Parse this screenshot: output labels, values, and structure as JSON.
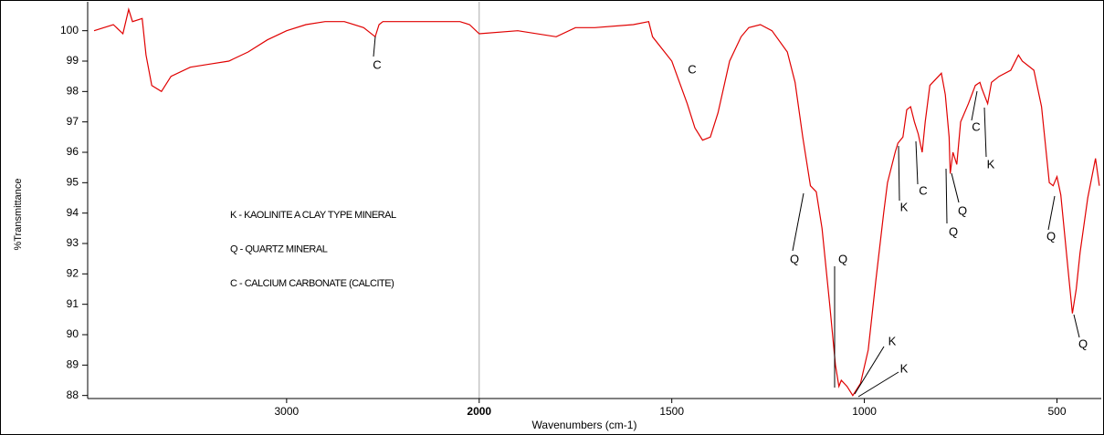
{
  "chart_data": {
    "type": "line",
    "xlabel": "Wavenumbers (cm-1)",
    "ylabel": "%Transmittance",
    "x": [
      4000,
      3900,
      3850,
      3820,
      3800,
      3750,
      3730,
      3700,
      3650,
      3600,
      3500,
      3400,
      3300,
      3200,
      3100,
      3000,
      2900,
      2800,
      2700,
      2600,
      2540,
      2520,
      2500,
      2300,
      2100,
      2050,
      2000,
      1900,
      1800,
      1750,
      1700,
      1600,
      1560,
      1550,
      1500,
      1480,
      1460,
      1440,
      1420,
      1400,
      1380,
      1350,
      1320,
      1300,
      1270,
      1240,
      1200,
      1180,
      1160,
      1140,
      1125,
      1110,
      1090,
      1075,
      1066,
      1060,
      1045,
      1030,
      1010,
      990,
      970,
      950,
      940,
      920,
      913,
      900,
      890,
      880,
      870,
      860,
      850,
      842,
      830,
      800,
      790,
      780,
      777,
      770,
      760,
      750,
      730,
      712,
      700,
      695,
      680,
      670,
      650,
      620,
      600,
      590,
      560,
      540,
      520,
      510,
      500,
      490,
      470,
      460,
      450,
      440,
      420,
      400,
      390
    ],
    "values": [
      100.0,
      100.2,
      99.9,
      100.7,
      100.3,
      100.4,
      99.2,
      98.2,
      98.0,
      98.5,
      98.8,
      98.9,
      99.0,
      99.3,
      99.7,
      100.0,
      100.2,
      100.3,
      100.3,
      100.1,
      99.8,
      100.2,
      100.3,
      100.3,
      100.3,
      100.2,
      99.9,
      100.0,
      99.8,
      100.1,
      100.1,
      100.2,
      100.3,
      99.8,
      99.0,
      98.3,
      97.6,
      96.8,
      96.4,
      96.5,
      97.3,
      99.0,
      99.8,
      100.1,
      100.2,
      100.0,
      99.3,
      98.3,
      96.5,
      94.9,
      94.7,
      93.5,
      91.0,
      89.0,
      88.3,
      88.5,
      88.3,
      88.0,
      88.4,
      89.5,
      91.8,
      94.0,
      95.0,
      96.0,
      96.3,
      96.5,
      97.4,
      97.5,
      97.0,
      96.6,
      96.0,
      97.0,
      98.2,
      98.6,
      97.9,
      96.5,
      95.3,
      96.0,
      95.6,
      97.0,
      97.6,
      98.2,
      98.3,
      98.1,
      97.6,
      98.3,
      98.5,
      98.7,
      99.2,
      99.0,
      98.7,
      97.5,
      95.0,
      94.9,
      95.2,
      94.6,
      92.0,
      90.7,
      91.5,
      92.7,
      94.5,
      95.8,
      94.9
    ],
    "color": "#e00000",
    "xlim": [
      4033,
      385
    ],
    "xbreak": 2000,
    "xticks": [
      3000,
      2000,
      1500,
      1000,
      500
    ],
    "ylim": [
      87.9,
      100.95
    ],
    "yticks": [
      88,
      89,
      90,
      91,
      92,
      93,
      94,
      95,
      96,
      97,
      98,
      99,
      100
    ],
    "annotations": [
      "C",
      "C",
      "Q",
      "Q",
      "K",
      "K",
      "K",
      "C",
      "Q",
      "Q",
      "C",
      "K",
      "Q",
      "Q"
    ],
    "notes": [
      "K - KAOLINITE A CLAY TYPE MINERAL",
      "Q - QUARTZ MINERAL",
      "C - CALCIUM CARBONATE (CALCITE)"
    ]
  }
}
